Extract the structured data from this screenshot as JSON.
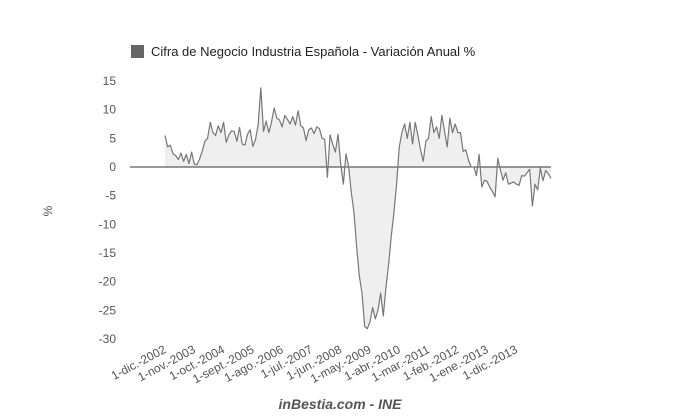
{
  "chart_data": {
    "type": "area",
    "title": "",
    "xlabel": "",
    "ylabel": "%",
    "ylim": [
      -30,
      15
    ],
    "yticks": [
      15,
      10,
      5,
      0,
      -5,
      -10,
      -15,
      -20,
      -25,
      -30
    ],
    "legend": "top-left",
    "grid": false,
    "credit": "inBestia.com - INE",
    "colors": {
      "line": "#777777",
      "fill": "#efefef",
      "legend_swatch": "#666666",
      "zero_line": "#333333"
    },
    "x_tick_labels": [
      "1-dic.-2002",
      "1-nov.-2003",
      "1-oct.-2004",
      "1-sept.-2005",
      "1-ago.-2006",
      "1-jul.-2007",
      "1-jun.-2008",
      "1-may.-2009",
      "1-abr.-2010",
      "1-mar.-2011",
      "1-feb.-2012",
      "1-ene.-2013",
      "1-dic.-2013"
    ],
    "series": [
      {
        "name": "Cifra de Negocio Industria Española - Variación Anual %",
        "start": "2002-12",
        "frequency": "monthly",
        "values": [
          5.5,
          3.5,
          3.8,
          2.3,
          2.0,
          1.3,
          2.4,
          1.0,
          2.2,
          0.6,
          2.6,
          0.5,
          0.4,
          1.4,
          2.8,
          4.5,
          5.0,
          7.8,
          6.0,
          5.5,
          7.2,
          6.0,
          7.8,
          4.3,
          5.6,
          6.3,
          6.2,
          4.5,
          6.9,
          4.0,
          3.8,
          5.7,
          6.5,
          3.6,
          4.8,
          7.4,
          13.8,
          6.2,
          8.0,
          6.0,
          7.8,
          10.3,
          8.5,
          8.2,
          7.0,
          9.0,
          8.3,
          7.5,
          8.8,
          7.3,
          9.8,
          7.2,
          6.8,
          4.6,
          6.5,
          6.8,
          5.8,
          7.0,
          6.7,
          5.0,
          4.8,
          -1.8,
          5.6,
          4.0,
          2.6,
          5.7,
          0.5,
          -3.0,
          2.3,
          0.0,
          -4.5,
          -8.0,
          -14.0,
          -19.0,
          -22.0,
          -27.8,
          -28.2,
          -27.0,
          -24.5,
          -26.5,
          -25.0,
          -22.0,
          -26.0,
          -21.0,
          -17.0,
          -12.0,
          -8.0,
          -3.0,
          3.5,
          6.0,
          7.5,
          5.0,
          7.8,
          4.0,
          7.8,
          5.5,
          3.0,
          1.0,
          4.5,
          5.0,
          8.8,
          6.0,
          7.0,
          5.0,
          9.0,
          6.3,
          3.5,
          8.5,
          6.0,
          7.5,
          6.0,
          6.0,
          2.7,
          3.0,
          1.2,
          0.0,
          0.0,
          -1.5,
          2.2,
          -3.5,
          -2.3,
          -2.5,
          -3.5,
          -4.3,
          -5.2,
          1.5,
          -0.5,
          -2.3,
          -1.0,
          -3.0,
          -2.8,
          -2.6,
          -3.0,
          -3.2,
          -1.5,
          -1.6,
          -1.0,
          -0.4,
          -6.8,
          -3.0,
          -4.0,
          -0.2,
          -2.4,
          -0.6,
          -1.2,
          -2.0
        ]
      }
    ]
  }
}
